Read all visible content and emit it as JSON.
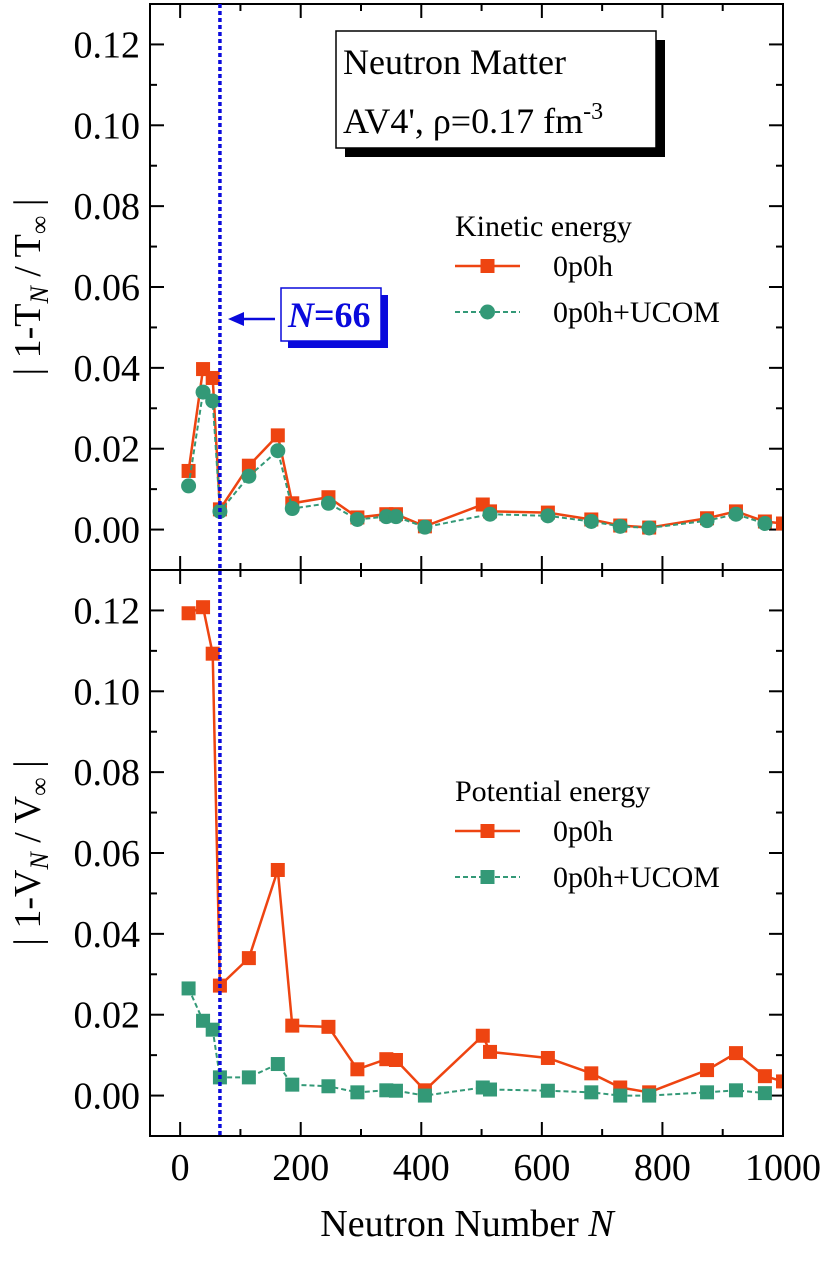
{
  "chart_data": [
    {
      "type": "line",
      "panel": "top",
      "info_box": {
        "line1": "Neutron Matter",
        "line2_prefix": "AV4', ρ=0.17 fm",
        "line2_sup": "-3"
      },
      "ylabel": {
        "prefix": "| 1-T",
        "sub1": "N",
        "middle": " / T",
        "sub2": "∞",
        "suffix": " |"
      },
      "ylim": [
        -0.01,
        0.13
      ],
      "yticks": [
        "0.00",
        "0.02",
        "0.04",
        "0.06",
        "0.08",
        "0.10",
        "0.12"
      ],
      "legend": {
        "title": "Kinetic energy",
        "placement": "right"
      },
      "annotation": {
        "label_italic": "N",
        "label_rest": "=66",
        "x": 66
      },
      "series": [
        {
          "name": "0p0h",
          "color": "#ee4411",
          "marker": "square",
          "dash": "solid",
          "x": [
            14,
            38,
            54,
            66,
            114,
            162,
            186,
            246,
            294,
            342,
            358,
            406,
            502,
            514,
            610,
            682,
            730,
            778,
            874,
            922,
            970,
            1000
          ],
          "y": [
            0.0145,
            0.0397,
            0.0375,
            0.005,
            0.0158,
            0.0233,
            0.0065,
            0.008,
            0.003,
            0.0038,
            0.0038,
            0.0008,
            0.0062,
            0.0045,
            0.0042,
            0.0025,
            0.001,
            0.0005,
            0.0028,
            0.0045,
            0.002,
            0.0015
          ]
        },
        {
          "name": "0p0h+UCOM",
          "color": "#339977",
          "marker": "circle",
          "dash": "dotted",
          "x": [
            14,
            38,
            54,
            66,
            114,
            162,
            186,
            246,
            294,
            342,
            358,
            406,
            514,
            610,
            682,
            730,
            778,
            874,
            922,
            970
          ],
          "y": [
            0.0108,
            0.034,
            0.0318,
            0.0045,
            0.0132,
            0.0195,
            0.0052,
            0.0065,
            0.0025,
            0.0032,
            0.0032,
            0.0006,
            0.0038,
            0.0034,
            0.002,
            0.0008,
            0.0004,
            0.0022,
            0.0038,
            0.0015
          ]
        }
      ]
    },
    {
      "type": "line",
      "panel": "bottom",
      "ylabel": {
        "prefix": "| 1-V",
        "sub1": "N",
        "middle": " / V",
        "sub2": "∞",
        "suffix": " |"
      },
      "ylim": [
        -0.01,
        0.13
      ],
      "yticks": [
        "0.00",
        "0.02",
        "0.04",
        "0.06",
        "0.08",
        "0.10",
        "0.12"
      ],
      "xlabel": {
        "prefix": "Neutron Number ",
        "italic": "N"
      },
      "xlim": [
        -50,
        1000
      ],
      "xticks": [
        "0",
        "200",
        "400",
        "600",
        "800",
        "1000"
      ],
      "legend": {
        "title": "Potential energy",
        "placement": "right"
      },
      "series": [
        {
          "name": "0p0h",
          "color": "#ee4411",
          "marker": "square",
          "dash": "solid",
          "x": [
            14,
            38,
            54,
            66,
            114,
            162,
            186,
            246,
            294,
            342,
            358,
            406,
            502,
            514,
            610,
            682,
            730,
            778,
            874,
            922,
            970,
            1000
          ],
          "y": [
            0.1193,
            0.1208,
            0.1093,
            0.0272,
            0.034,
            0.0558,
            0.0173,
            0.017,
            0.0065,
            0.009,
            0.0088,
            0.0013,
            0.0148,
            0.0108,
            0.0093,
            0.0055,
            0.002,
            0.0008,
            0.0063,
            0.0105,
            0.0048,
            0.0035
          ]
        },
        {
          "name": "0p0h+UCOM",
          "color": "#339977",
          "marker": "square",
          "dash": "dotted",
          "x": [
            14,
            38,
            54,
            66,
            114,
            162,
            186,
            246,
            294,
            342,
            358,
            406,
            502,
            514,
            610,
            682,
            730,
            778,
            874,
            922,
            970
          ],
          "y": [
            0.0265,
            0.0185,
            0.0163,
            0.0045,
            0.0045,
            0.0078,
            0.0027,
            0.0023,
            0.0008,
            0.0013,
            0.0012,
            0.0,
            0.002,
            0.0015,
            0.0012,
            0.0008,
            0.0,
            0.0,
            0.0008,
            0.0013,
            0.0006
          ]
        }
      ]
    }
  ]
}
